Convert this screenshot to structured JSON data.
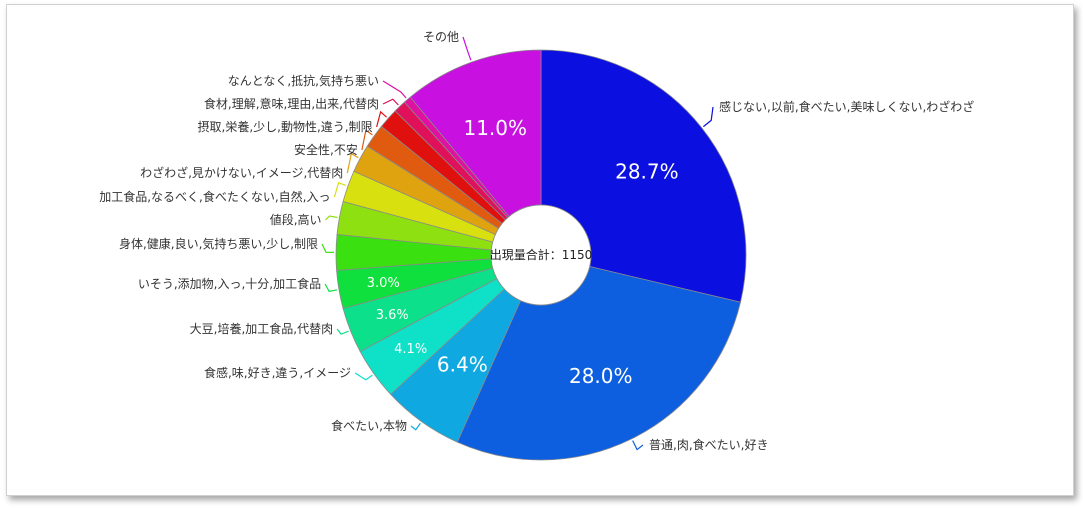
{
  "chart_data": {
    "type": "pie",
    "center_label": "出現量合計：1150",
    "slices": [
      {
        "label": "感じない,以前,食べたい,美味しくない,わざわざ",
        "value": 28.7,
        "display": "28.7%",
        "color": "#0b0fe0"
      },
      {
        "label": "普通,肉,食べたい,好き",
        "value": 28.0,
        "display": "28.0%",
        "color": "#0d5fe0"
      },
      {
        "label": "食べたい,本物",
        "value": 6.4,
        "display": "6.4%",
        "color": "#10a8e0"
      },
      {
        "label": "食感,味,好き,違う,イメージ",
        "value": 4.1,
        "display": "4.1%",
        "color": "#0fe0c8"
      },
      {
        "label": "大豆,培養,加工食品,代替肉",
        "value": 3.6,
        "display": "3.6%",
        "color": "#0de08a"
      },
      {
        "label": "いそう,添加物,入っ,十分,加工食品",
        "value": 3.0,
        "display": "3.0%",
        "color": "#10e03e"
      },
      {
        "label": "身体,健康,良い,気持ち悪い,少し,制限",
        "value": 2.8,
        "display": "",
        "color": "#3ae00f"
      },
      {
        "label": "値段,高い",
        "value": 2.6,
        "display": "",
        "color": "#8ee010"
      },
      {
        "label": "加工食品,なるべく,食べたくない,自然,入っ",
        "value": 2.5,
        "display": "",
        "color": "#d8e010"
      },
      {
        "label": "わざわざ,見かけない,イメージ,代替肉",
        "value": 2.2,
        "display": "",
        "color": "#e0a310"
      },
      {
        "label": "安全性,不安",
        "value": 1.9,
        "display": "",
        "color": "#e05a10"
      },
      {
        "label": "摂取,栄養,少し,動物性,違う,制限",
        "value": 1.6,
        "display": "",
        "color": "#e0100f"
      },
      {
        "label": "食材,理解,意味,理由,出来,代替肉",
        "value": 1.0,
        "display": "",
        "color": "#e0105a"
      },
      {
        "label": "なんとなく,抵抗,気持ち悪い",
        "value": 0.6,
        "display": "",
        "color": "#e010a3"
      },
      {
        "label": "その他",
        "value": 11.0,
        "display": "11.0%",
        "color": "#c810e0"
      }
    ]
  }
}
